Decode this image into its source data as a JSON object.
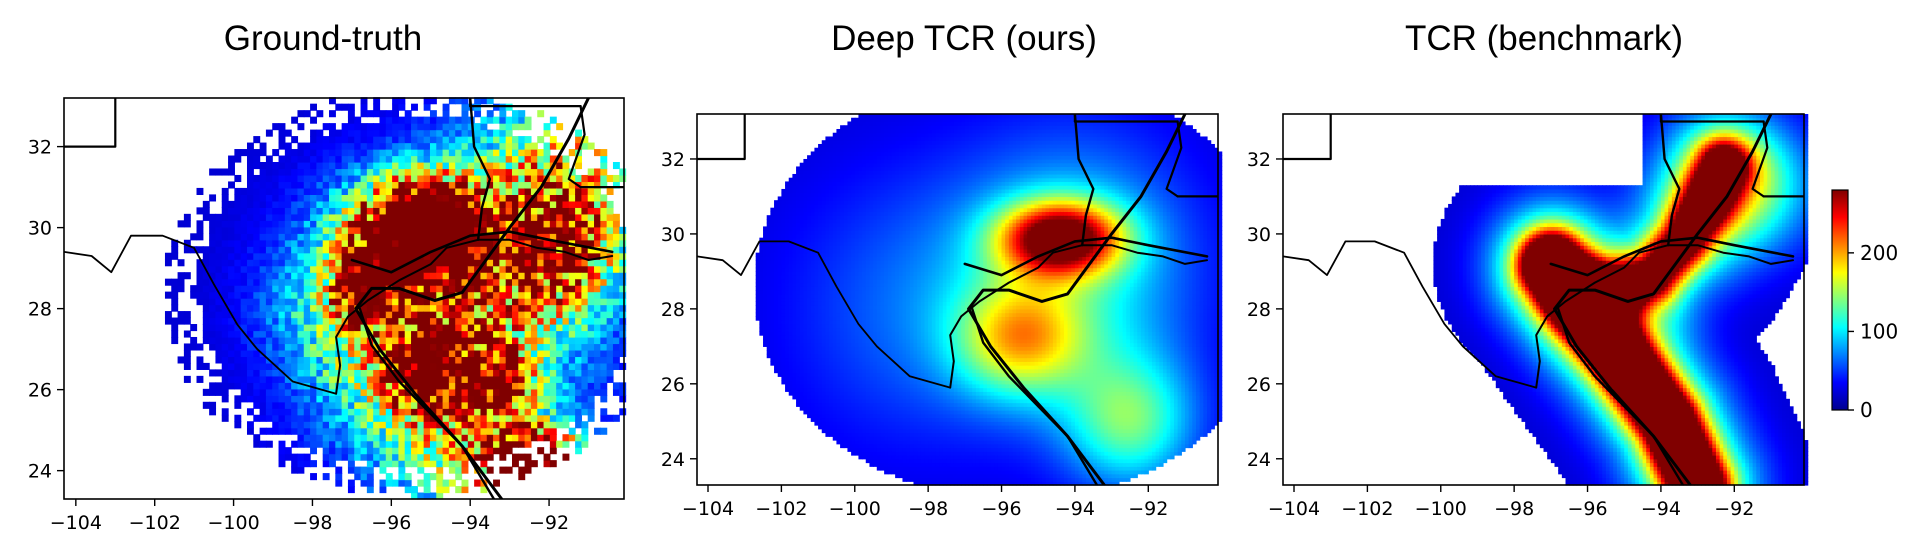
{
  "colors": {
    "land_border": "#1a1a1a",
    "track": "#000000",
    "frame": "#000000"
  },
  "colormap": "jet",
  "chart_data": [
    {
      "type": "heatmap",
      "title": "Ground-truth",
      "field": "observed",
      "xlim": [
        -104.3,
        -90.1
      ],
      "ylim": [
        23.3,
        33.2
      ],
      "xticks": [
        -104,
        -102,
        -100,
        -98,
        -96,
        -94,
        -92
      ],
      "yticks": [
        24,
        26,
        28,
        30,
        32
      ],
      "hotspots": [
        {
          "lon": -95.2,
          "lat": 30.0,
          "value": 400
        },
        {
          "lon": -96.6,
          "lat": 28.6,
          "value": 300
        },
        {
          "lon": -95.1,
          "lat": 26.6,
          "value": 280
        },
        {
          "lon": -92.4,
          "lat": 24.3,
          "value": 330
        },
        {
          "lon": -93.3,
          "lat": 26.3,
          "value": 220
        },
        {
          "lon": -91.5,
          "lat": 29.6,
          "value": 160
        }
      ]
    },
    {
      "type": "heatmap",
      "title": "Deep TCR (ours)",
      "field": "model",
      "xlim": [
        -104.3,
        -90.1
      ],
      "ylim": [
        23.3,
        33.2
      ],
      "xticks": [
        -104,
        -102,
        -100,
        -98,
        -96,
        -94,
        -92
      ],
      "yticks": [
        24,
        26,
        28,
        30,
        32
      ],
      "hotspots": [
        {
          "lon": -94.4,
          "lat": 29.9,
          "value": 260
        },
        {
          "lon": -95.5,
          "lat": 27.2,
          "value": 140
        },
        {
          "lon": -92.5,
          "lat": 25.0,
          "value": 120
        }
      ]
    },
    {
      "type": "heatmap",
      "title": "TCR (benchmark)",
      "field": "benchmark",
      "xlim": [
        -104.3,
        -90.1
      ],
      "ylim": [
        23.3,
        33.2
      ],
      "xticks": [
        -104,
        -102,
        -100,
        -98,
        -96,
        -94,
        -92
      ],
      "yticks": [
        24,
        26,
        28,
        30,
        32
      ],
      "colorbar": {
        "ticks": [
          0,
          100,
          200
        ],
        "max": 280
      },
      "hotspots": [
        {
          "lon": -96.3,
          "lat": 28.4,
          "value": 360
        },
        {
          "lon": -94.3,
          "lat": 25.8,
          "value": 300
        },
        {
          "lon": -93.0,
          "lat": 30.5,
          "value": 120
        }
      ]
    }
  ]
}
